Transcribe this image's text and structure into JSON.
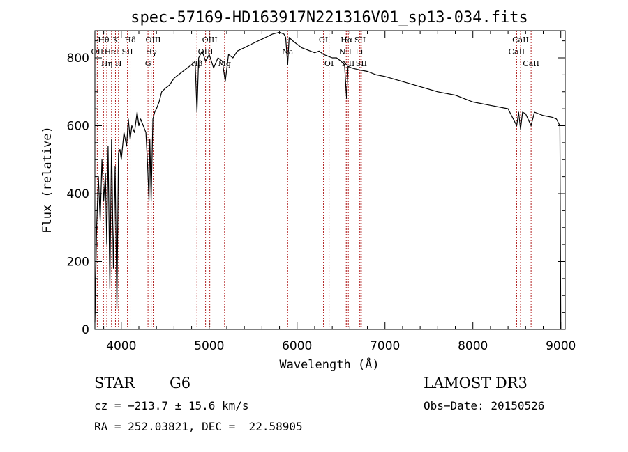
{
  "chart_data": {
    "type": "line",
    "title": "spec-57169-HD163917N221316V01_sp13-034.fits",
    "xlabel": "Wavelength (Å)",
    "ylabel": "Flux (relative)",
    "xlim": [
      3700,
      9050
    ],
    "ylim": [
      0,
      880
    ],
    "x_ticks": [
      4000,
      5000,
      6000,
      7000,
      8000,
      9000
    ],
    "y_ticks": [
      0,
      200,
      400,
      600,
      800
    ],
    "grid": false,
    "legend": "none",
    "series": [
      {
        "color": "#000000",
        "x": [
          3700,
          3720,
          3740,
          3760,
          3780,
          3800,
          3820,
          3835,
          3850,
          3870,
          3890,
          3910,
          3930,
          3950,
          3968,
          3985,
          4000,
          4030,
          4060,
          4080,
          4101,
          4120,
          4150,
          4180,
          4200,
          4220,
          4250,
          4280,
          4300,
          4315,
          4325,
          4340,
          4360,
          4380,
          4400,
          4430,
          4460,
          4500,
          4550,
          4600,
          4650,
          4700,
          4750,
          4800,
          4840,
          4861,
          4880,
          4920,
          4960,
          5000,
          5050,
          5100,
          5150,
          5183,
          5220,
          5270,
          5320,
          5400,
          5480,
          5560,
          5640,
          5720,
          5800,
          5850,
          5870,
          5893,
          5910,
          5950,
          6000,
          6050,
          6100,
          6150,
          6200,
          6250,
          6300,
          6350,
          6400,
          6450,
          6500,
          6540,
          6563,
          6580,
          6620,
          6700,
          6800,
          6900,
          7000,
          7200,
          7400,
          7600,
          7800,
          8000,
          8200,
          8400,
          8498,
          8520,
          8542,
          8565,
          8600,
          8662,
          8700,
          8800,
          8900,
          8950,
          8990,
          9000
        ],
        "values": [
          20,
          300,
          450,
          320,
          500,
          380,
          460,
          250,
          540,
          120,
          560,
          180,
          480,
          60,
          520,
          530,
          500,
          580,
          540,
          620,
          560,
          600,
          580,
          640,
          600,
          620,
          600,
          580,
          480,
          380,
          560,
          380,
          620,
          640,
          650,
          670,
          700,
          710,
          720,
          740,
          750,
          760,
          770,
          780,
          790,
          640,
          800,
          820,
          790,
          810,
          770,
          800,
          790,
          730,
          810,
          800,
          820,
          830,
          840,
          850,
          860,
          870,
          875,
          870,
          860,
          780,
          860,
          850,
          840,
          830,
          825,
          820,
          815,
          820,
          810,
          805,
          800,
          800,
          790,
          780,
          680,
          775,
          770,
          765,
          760,
          750,
          745,
          730,
          715,
          700,
          690,
          670,
          660,
          650,
          600,
          640,
          590,
          640,
          635,
          600,
          640,
          630,
          625,
          620,
          600,
          0
        ]
      }
    ],
    "spectral_lines": [
      {
        "label": "Hθ",
        "x": 3798,
        "row": 1
      },
      {
        "label": "OII",
        "x": 3727,
        "row": 2
      },
      {
        "label": "Hη",
        "x": 3835,
        "row": 3
      },
      {
        "label": "K",
        "x": 3934,
        "row": 1
      },
      {
        "label": "HeI",
        "x": 3889,
        "row": 2
      },
      {
        "label": "H",
        "x": 3968,
        "row": 3
      },
      {
        "label": "Hδ",
        "x": 4101,
        "row": 1
      },
      {
        "label": "SII",
        "x": 4070,
        "row": 2
      },
      {
        "label": "OIII",
        "x": 4363,
        "row": 1
      },
      {
        "label": "Hγ",
        "x": 4340,
        "row": 2
      },
      {
        "label": "G",
        "x": 4304,
        "row": 3
      },
      {
        "label": "Hβ",
        "x": 4861,
        "row": 3
      },
      {
        "label": "OIII",
        "x": 5007,
        "row": 1
      },
      {
        "label": "OIII",
        "x": 4959,
        "row": 2
      },
      {
        "label": "Mg",
        "x": 5175,
        "row": 3
      },
      {
        "label": "Na",
        "x": 5893,
        "row": 2
      },
      {
        "label": "OI",
        "x": 6300,
        "row": 1
      },
      {
        "label": "OI",
        "x": 6364,
        "row": 3
      },
      {
        "label": "Hα",
        "x": 6563,
        "row": 1
      },
      {
        "label": "NII",
        "x": 6548,
        "row": 2
      },
      {
        "label": "NII",
        "x": 6583,
        "row": 3
      },
      {
        "label": "SII",
        "x": 6716,
        "row": 1
      },
      {
        "label": "Li",
        "x": 6707,
        "row": 2
      },
      {
        "label": "SII",
        "x": 6731,
        "row": 3
      },
      {
        "label": "CaII",
        "x": 8542,
        "row": 1
      },
      {
        "label": "CaII",
        "x": 8498,
        "row": 2
      },
      {
        "label": "CaII",
        "x": 8662,
        "row": 3
      }
    ]
  },
  "info": {
    "object_class": "STAR",
    "subclass": "G6",
    "survey": "LAMOST DR3",
    "cz": "cz = −213.7 ± 15.6 km/s",
    "obs_date": "Obs−Date: 20150526",
    "coords": "RA = 252.03821, DEC =  22.58905"
  }
}
